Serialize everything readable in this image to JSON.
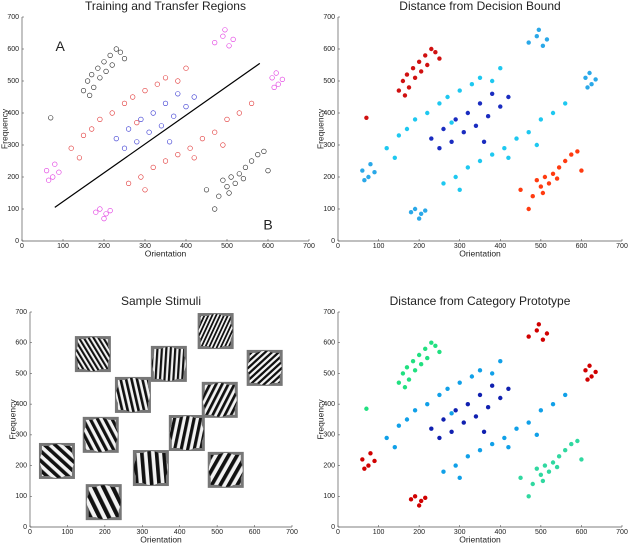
{
  "chart_data": [
    {
      "type": "scatter",
      "title": "Training and Transfer Regions",
      "xlabel": "Orientation",
      "ylabel": "Frequency",
      "xlim": [
        0,
        700
      ],
      "ylim": [
        0,
        700
      ],
      "xticks": [
        0,
        100,
        200,
        300,
        400,
        500,
        600,
        700
      ],
      "yticks": [
        0,
        100,
        200,
        300,
        400,
        500,
        600,
        700
      ],
      "marker": "open",
      "series": [
        {
          "color": "#222222",
          "x": [
            150,
            160,
            170,
            175,
            185,
            190,
            200,
            205,
            215,
            220,
            230,
            240,
            165,
            70,
            250
          ],
          "y": [
            470,
            500,
            520,
            480,
            540,
            510,
            560,
            530,
            580,
            550,
            600,
            590,
            455,
            385,
            570
          ]
        },
        {
          "color": "#222222",
          "x": [
            470,
            480,
            500,
            510,
            520,
            530,
            545,
            560,
            575,
            590,
            600,
            490,
            505,
            540,
            450
          ],
          "y": [
            100,
            140,
            170,
            200,
            180,
            210,
            230,
            250,
            270,
            280,
            220,
            190,
            150,
            195,
            160
          ]
        },
        {
          "color": "#e03030",
          "x": [
            120,
            150,
            170,
            190,
            220,
            250,
            270,
            300,
            330,
            350,
            380,
            400,
            140,
            280,
            260,
            290,
            320,
            350,
            380,
            410,
            440,
            470,
            500,
            530,
            560,
            300,
            420,
            490
          ],
          "y": [
            290,
            330,
            350,
            380,
            400,
            430,
            450,
            470,
            490,
            510,
            500,
            540,
            260,
            370,
            180,
            200,
            230,
            250,
            270,
            290,
            320,
            340,
            380,
            400,
            430,
            160,
            260,
            300
          ]
        },
        {
          "color": "#3030d0",
          "x": [
            230,
            260,
            290,
            320,
            350,
            380,
            250,
            280,
            310,
            340,
            370,
            400,
            420,
            360
          ],
          "y": [
            320,
            350,
            380,
            400,
            430,
            460,
            290,
            310,
            340,
            360,
            390,
            420,
            450,
            310
          ]
        },
        {
          "color": "#e030e0",
          "x": [
            60,
            75,
            90,
            80,
            65,
            190,
            205,
            215,
            200,
            180,
            470,
            490,
            505,
            495,
            515,
            610,
            625,
            635,
            615,
            620
          ],
          "y": [
            220,
            200,
            215,
            240,
            190,
            100,
            85,
            95,
            70,
            90,
            620,
            640,
            610,
            660,
            630,
            510,
            490,
            505,
            480,
            525
          ]
        }
      ],
      "line": {
        "x": [
          80,
          580
        ],
        "y": [
          105,
          555
        ]
      },
      "annotations": [
        {
          "text": "A",
          "x": 93,
          "y": 606
        },
        {
          "text": "B",
          "x": 600,
          "y": 47
        }
      ]
    },
    {
      "type": "scatter",
      "title": "Distance from Decision Bound",
      "xlabel": "Orientation",
      "ylabel": "Frequency",
      "xlim": [
        0,
        700
      ],
      "ylim": [
        0,
        700
      ],
      "xticks": [
        0,
        100,
        200,
        300,
        400,
        500,
        600,
        700
      ],
      "yticks": [
        0,
        100,
        200,
        300,
        400,
        500,
        600,
        700
      ],
      "marker": "filled",
      "series": [
        {
          "color": "#d01010",
          "x": [
            150,
            160,
            170,
            175,
            185,
            190,
            200,
            205,
            215,
            220,
            230,
            240,
            165,
            70,
            250
          ],
          "y": [
            470,
            500,
            520,
            480,
            540,
            510,
            560,
            530,
            580,
            550,
            600,
            590,
            455,
            385,
            570
          ]
        },
        {
          "color": "#ff3b10",
          "x": [
            470,
            480,
            500,
            510,
            520,
            530,
            545,
            560,
            575,
            590,
            600,
            490,
            505,
            540,
            450
          ],
          "y": [
            100,
            140,
            170,
            200,
            180,
            210,
            230,
            250,
            270,
            280,
            220,
            190,
            150,
            195,
            160
          ]
        },
        {
          "color": "#1ec8f0",
          "x": [
            120,
            150,
            170,
            190,
            220,
            250,
            270,
            300,
            330,
            350,
            380,
            400,
            140,
            280,
            260,
            290,
            320,
            350,
            380,
            410,
            440,
            470,
            500,
            530,
            560,
            300,
            420,
            490
          ],
          "y": [
            290,
            330,
            350,
            380,
            400,
            430,
            450,
            470,
            490,
            510,
            500,
            540,
            260,
            370,
            180,
            200,
            230,
            250,
            270,
            290,
            320,
            340,
            380,
            400,
            430,
            160,
            260,
            300
          ]
        },
        {
          "color": "#1a2cc0",
          "x": [
            230,
            260,
            290,
            320,
            350,
            380,
            250,
            280,
            310,
            340,
            370,
            400,
            420,
            360
          ],
          "y": [
            320,
            350,
            380,
            400,
            430,
            460,
            290,
            310,
            340,
            360,
            390,
            420,
            450,
            310
          ]
        },
        {
          "color": "#2aa8e8",
          "x": [
            60,
            75,
            90,
            80,
            65,
            190,
            205,
            215,
            200,
            180,
            470,
            490,
            505,
            495,
            515,
            610,
            625,
            635,
            615,
            620
          ],
          "y": [
            220,
            200,
            215,
            240,
            190,
            100,
            85,
            95,
            70,
            90,
            620,
            640,
            610,
            660,
            630,
            510,
            490,
            505,
            480,
            525
          ]
        }
      ]
    },
    {
      "type": "stimuli",
      "title": "Sample Stimuli",
      "xlabel": "Orientation",
      "ylabel": "Frequency",
      "xlim": [
        0,
        700
      ],
      "ylim": [
        0,
        700
      ],
      "xticks": [
        0,
        100,
        200,
        300,
        400,
        500,
        600,
        700
      ],
      "yticks": [
        0,
        100,
        200,
        300,
        400,
        500,
        600,
        700
      ],
      "x": [
        72,
        197,
        168,
        275,
        189,
        323,
        371,
        419,
        496,
        507,
        523,
        627
      ],
      "y": [
        215,
        81,
        563,
        430,
        300,
        192,
        531,
        306,
        638,
        414,
        186,
        518
      ]
    },
    {
      "type": "scatter",
      "title": "Distance from Category Prototype",
      "xlabel": "Orientation",
      "ylabel": "Frequency",
      "xlim": [
        0,
        700
      ],
      "ylim": [
        0,
        700
      ],
      "xticks": [
        0,
        100,
        200,
        300,
        400,
        500,
        600,
        700
      ],
      "yticks": [
        0,
        100,
        200,
        300,
        400,
        500,
        600,
        700
      ],
      "marker": "filled",
      "series": [
        {
          "color": "#20e080",
          "x": [
            150,
            160,
            170,
            175,
            185,
            190,
            200,
            205,
            215,
            220,
            230,
            240,
            165,
            70,
            250
          ],
          "y": [
            470,
            500,
            520,
            480,
            540,
            510,
            560,
            530,
            580,
            550,
            600,
            590,
            455,
            385,
            570
          ]
        },
        {
          "color": "#30d8a0",
          "x": [
            470,
            480,
            500,
            510,
            520,
            530,
            545,
            560,
            575,
            590,
            600,
            490,
            505,
            540,
            450
          ],
          "y": [
            100,
            140,
            170,
            200,
            180,
            210,
            230,
            250,
            270,
            280,
            220,
            190,
            150,
            195,
            160
          ]
        },
        {
          "color": "#10a0e8",
          "x": [
            120,
            150,
            170,
            190,
            220,
            250,
            270,
            300,
            330,
            350,
            380,
            400,
            140,
            280,
            260,
            290,
            320,
            350,
            380,
            410,
            440,
            470,
            500,
            530,
            560,
            300,
            420,
            490
          ],
          "y": [
            290,
            330,
            350,
            380,
            400,
            430,
            450,
            470,
            490,
            510,
            500,
            540,
            260,
            370,
            180,
            200,
            230,
            250,
            270,
            290,
            320,
            340,
            380,
            400,
            430,
            160,
            260,
            300
          ]
        },
        {
          "color": "#1020b0",
          "x": [
            230,
            260,
            290,
            320,
            350,
            380,
            250,
            280,
            310,
            340,
            370,
            400,
            420,
            360
          ],
          "y": [
            320,
            350,
            380,
            400,
            430,
            460,
            290,
            310,
            340,
            360,
            390,
            420,
            450,
            310
          ]
        },
        {
          "color": "#d00000",
          "x": [
            60,
            75,
            90,
            80,
            65,
            190,
            205,
            215,
            200,
            180,
            470,
            490,
            505,
            495,
            515,
            610,
            625,
            635,
            615,
            620
          ],
          "y": [
            220,
            200,
            215,
            240,
            190,
            100,
            85,
            95,
            70,
            90,
            620,
            640,
            610,
            660,
            630,
            510,
            490,
            505,
            480,
            525
          ]
        }
      ]
    }
  ]
}
